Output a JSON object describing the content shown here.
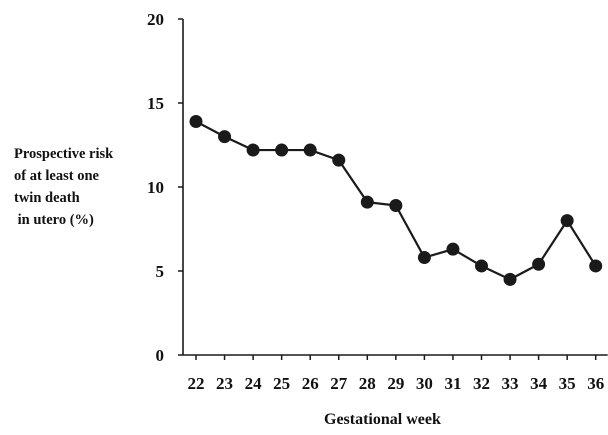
{
  "chart_data": {
    "type": "line",
    "title": "",
    "xlabel": "Gestational week",
    "ylabel_lines": [
      "Prospective risk",
      "of at least one",
      "twin death",
      " in utero (%)"
    ],
    "x": [
      22,
      23,
      24,
      25,
      26,
      27,
      28,
      29,
      30,
      31,
      32,
      33,
      34,
      35,
      36
    ],
    "series": [
      {
        "values": [
          13.9,
          13.0,
          12.2,
          12.2,
          12.2,
          11.6,
          9.1,
          8.9,
          5.8,
          6.3,
          5.3,
          4.5,
          5.4,
          8.0,
          5.3
        ]
      }
    ],
    "ylim": [
      0,
      20
    ],
    "yticks": [
      0,
      5,
      10,
      15,
      20
    ],
    "grid": false,
    "legend": "none",
    "colors": {
      "line": "#1a1a1a",
      "marker": "#1a1a1a",
      "axis": "#1a1a1a"
    }
  }
}
